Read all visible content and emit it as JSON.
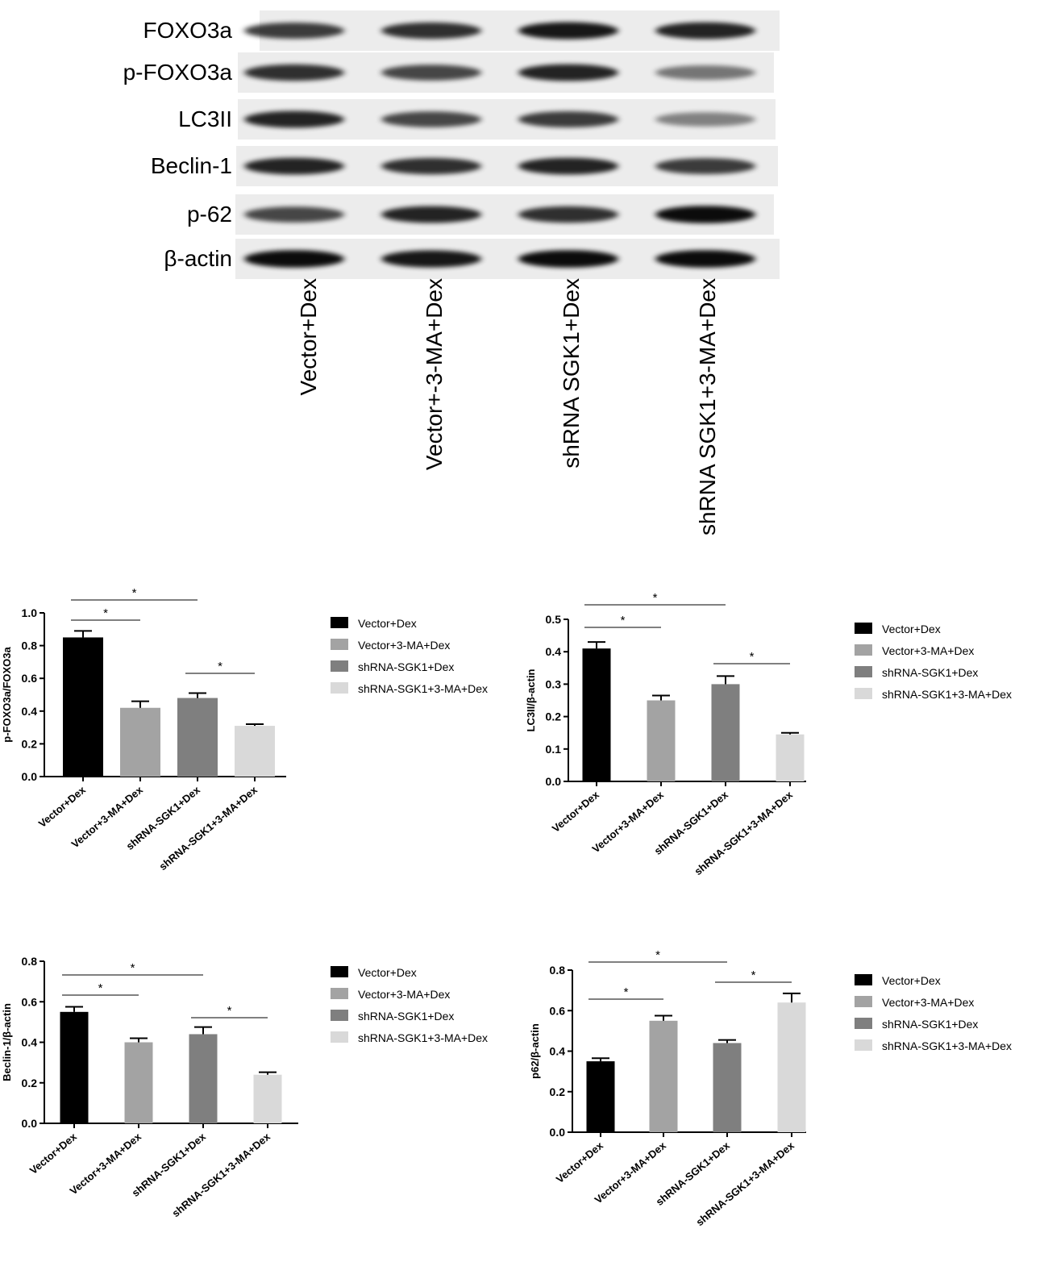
{
  "blot": {
    "rows": [
      "FOXO3a",
      "p-FOXO3a",
      "LC3II",
      "Beclin-1",
      "p-62",
      "β-actin"
    ],
    "lanes": [
      "Vector+Dex",
      "Vector+-3-MA+Dex",
      "shRNA SGK1+Dex",
      "shRNA SGK1+3-MA+Dex"
    ]
  },
  "chart_data": [
    {
      "type": "bar",
      "y_label": "p-FOXO3a/FOXO3a",
      "categories": [
        "Vector+Dex",
        "Vector+3-MA+Dex",
        "shRNA-SGK1+Dex",
        "shRNA-SGK1+3-MA+Dex"
      ],
      "values": [
        0.85,
        0.42,
        0.48,
        0.31
      ],
      "errors": [
        0.04,
        0.04,
        0.03,
        0.01
      ],
      "colors": [
        "#000000",
        "#a3a3a3",
        "#7f7f7f",
        "#d9d9d9"
      ],
      "ylim": [
        0,
        1.0
      ],
      "yticks": [
        {
          "value": 0,
          "label": "0.0"
        },
        0.2,
        0.4,
        0.6,
        0.8,
        {
          "value": 1.0,
          "label": "1.0"
        }
      ],
      "significance": [
        {
          "from": "Vector+Dex",
          "to": "shRNA-SGK1+Dex",
          "label": "*"
        },
        {
          "from": "Vector+Dex",
          "to": "Vector+3-MA+Dex",
          "label": "*"
        },
        {
          "from": "shRNA-SGK1+Dex",
          "to": "shRNA-SGK1+3-MA+Dex",
          "label": "*"
        }
      ],
      "legend": "right"
    },
    {
      "type": "bar",
      "y_label": "LC3II/β-actin",
      "categories": [
        "Vector+Dex",
        "Vector+3-MA+Dex",
        "shRNA-SGK1+Dex",
        "shRNA-SGK1+3-MA+Dex"
      ],
      "values": [
        0.41,
        0.25,
        0.3,
        0.145
      ],
      "errors": [
        0.02,
        0.015,
        0.025,
        0.005
      ],
      "colors": [
        "#000000",
        "#a3a3a3",
        "#7f7f7f",
        "#d9d9d9"
      ],
      "ylim": [
        0,
        0.5
      ],
      "yticks": [
        {
          "value": 0,
          "label": "0.0"
        },
        0.1,
        0.2,
        0.3,
        0.4,
        0.5
      ],
      "significance": [
        {
          "from": "Vector+Dex",
          "to": "shRNA-SGK1+Dex",
          "label": "*"
        },
        {
          "from": "Vector+Dex",
          "to": "Vector+3-MA+Dex",
          "label": "*"
        },
        {
          "from": "shRNA-SGK1+Dex",
          "to": "shRNA-SGK1+3-MA+Dex",
          "label": "*"
        }
      ],
      "legend": "right"
    },
    {
      "type": "bar",
      "y_label": "Beclin-1/β-actin",
      "categories": [
        "Vector+Dex",
        "Vector+3-MA+Dex",
        "shRNA-SGK1+Dex",
        "shRNA-SGK1+3-MA+Dex"
      ],
      "values": [
        0.55,
        0.4,
        0.44,
        0.24
      ],
      "errors": [
        0.025,
        0.02,
        0.035,
        0.012
      ],
      "colors": [
        "#000000",
        "#a3a3a3",
        "#7f7f7f",
        "#d9d9d9"
      ],
      "ylim": [
        0,
        0.8
      ],
      "yticks": [
        {
          "value": 0,
          "label": "0.0"
        },
        0.2,
        0.4,
        0.6,
        0.8
      ],
      "significance": [
        {
          "from": "Vector+Dex",
          "to": "shRNA-SGK1+Dex",
          "label": "*"
        },
        {
          "from": "Vector+Dex",
          "to": "Vector+3-MA+Dex",
          "label": "*"
        },
        {
          "from": "shRNA-SGK1+Dex",
          "to": "shRNA-SGK1+3-MA+Dex",
          "label": "*"
        }
      ],
      "legend": "right"
    },
    {
      "type": "bar",
      "y_label": "p62/β-actin",
      "categories": [
        "Vector+Dex",
        "Vector+3-MA+Dex",
        "shRNA-SGK1+Dex",
        "shRNA-SGK1+3-MA+Dex"
      ],
      "values": [
        0.35,
        0.55,
        0.44,
        0.64
      ],
      "errors": [
        0.015,
        0.025,
        0.015,
        0.045
      ],
      "colors": [
        "#000000",
        "#a3a3a3",
        "#7f7f7f",
        "#d9d9d9"
      ],
      "ylim": [
        0,
        0.8
      ],
      "yticks": [
        {
          "value": 0,
          "label": "0.0"
        },
        0.2,
        0.4,
        0.6,
        0.8
      ],
      "significance": [
        {
          "from": "Vector+Dex",
          "to": "shRNA-SGK1+Dex",
          "label": "*"
        },
        {
          "from": "Vector+Dex",
          "to": "Vector+3-MA+Dex",
          "label": "*"
        },
        {
          "from": "shRNA-SGK1+Dex",
          "to": "shRNA-SGK1+3-MA+Dex",
          "label": "*"
        }
      ],
      "legend": "right"
    }
  ]
}
